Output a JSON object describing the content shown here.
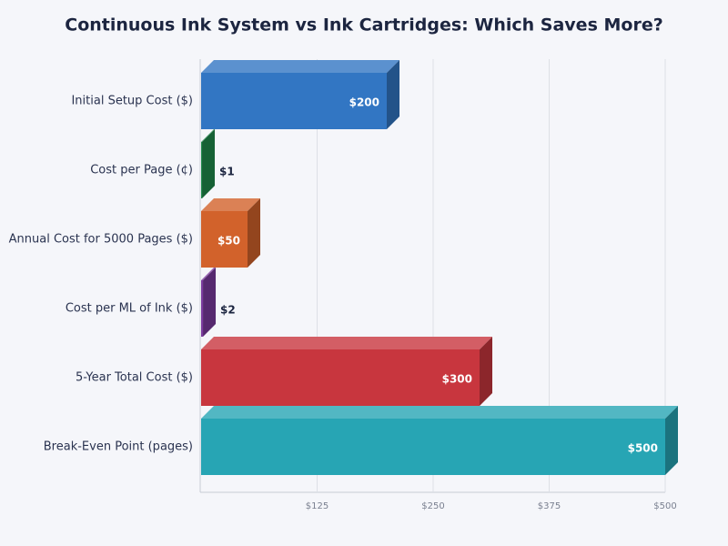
{
  "chart_data": {
    "type": "bar",
    "orientation": "horizontal",
    "title": "Continuous Ink System vs Ink Cartridges: Which Saves More?",
    "categories": [
      "Initial Setup Cost ($)",
      "Cost per Page (¢)",
      "Annual Cost for 5000 Pages ($)",
      "Cost per ML of Ink ($)",
      "5-Year Total Cost ($)",
      "Break-Even Point (pages)"
    ],
    "values": [
      200,
      1,
      50,
      2,
      300,
      500
    ],
    "value_labels": [
      "$200",
      "$1",
      "$50",
      "$2",
      "$300",
      "$500"
    ],
    "colors": [
      "#3276c3",
      "#1f8a4c",
      "#d2622b",
      "#7b3a9e",
      "#c8363e",
      "#27a5b4"
    ],
    "xlim": [
      0,
      500
    ],
    "xticks": [
      {
        "value": 125,
        "label": "$125"
      },
      {
        "value": 250,
        "label": "$250"
      },
      {
        "value": 375,
        "label": "$375"
      },
      {
        "value": 500,
        "label": "$500"
      }
    ],
    "grid": true
  }
}
